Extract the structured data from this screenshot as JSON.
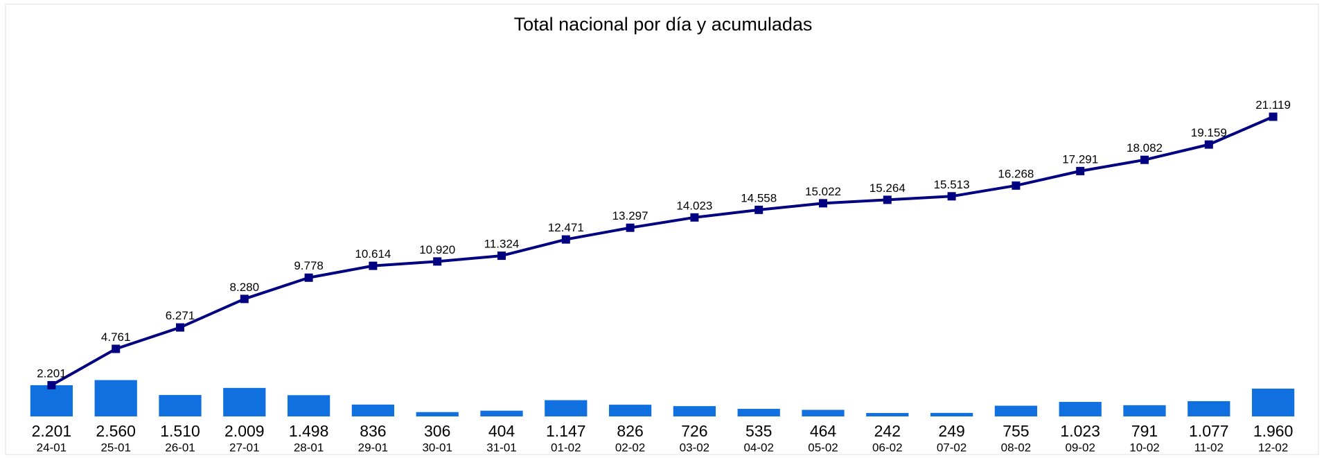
{
  "chart_data": {
    "type": "bar",
    "title": "Total nacional por día y acumuladas",
    "categories": [
      "24-01",
      "25-01",
      "26-01",
      "27-01",
      "28-01",
      "29-01",
      "30-01",
      "31-01",
      "01-02",
      "02-02",
      "03-02",
      "04-02",
      "05-02",
      "06-02",
      "07-02",
      "08-02",
      "09-02",
      "10-02",
      "11-02",
      "12-02"
    ],
    "ylim": [
      0,
      25000
    ],
    "series": [
      {
        "type": "bar",
        "color": "#1170e0",
        "values": [
          2201,
          2560,
          1510,
          2009,
          1498,
          836,
          306,
          404,
          1147,
          826,
          726,
          535,
          464,
          242,
          249,
          755,
          1023,
          791,
          1077,
          1960
        ],
        "value_labels": [
          "2.201",
          "2.560",
          "1.510",
          "2.009",
          "1.498",
          "836",
          "306",
          "404",
          "1.147",
          "826",
          "726",
          "535",
          "464",
          "242",
          "249",
          "755",
          "1.023",
          "791",
          "1.077",
          "1.960"
        ]
      },
      {
        "type": "line",
        "color": "#000080",
        "values": [
          2201,
          4761,
          6271,
          8280,
          9778,
          10614,
          10920,
          11324,
          12471,
          13297,
          14023,
          14558,
          15022,
          15264,
          15513,
          16268,
          17291,
          18082,
          19159,
          21119
        ],
        "value_labels": [
          "2.201",
          "4.761",
          "6.271",
          "8.280",
          "9.778",
          "10.614",
          "10.920",
          "11.324",
          "12.471",
          "13.297",
          "14.023",
          "14.558",
          "15.022",
          "15.264",
          "15.513",
          "16.268",
          "17.291",
          "18.082",
          "19.159",
          "21.119"
        ]
      }
    ]
  }
}
